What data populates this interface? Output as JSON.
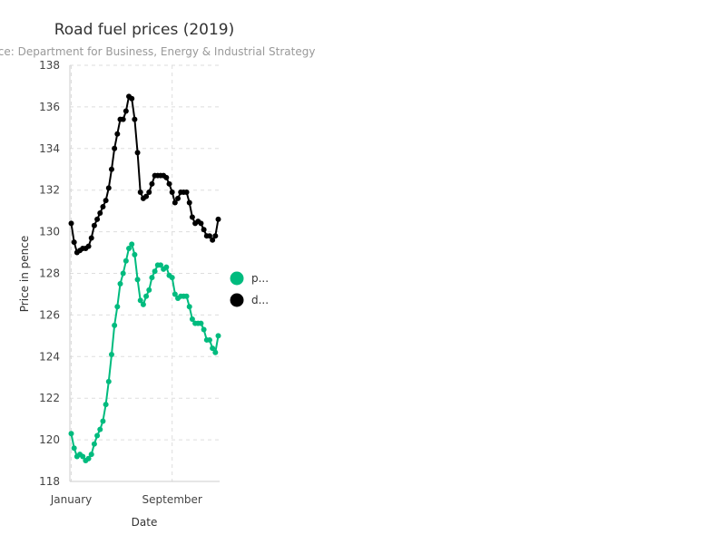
{
  "chart_data": {
    "type": "line",
    "title": "Road fuel prices (2019)",
    "subtitle": "Source: Department for Business, Energy & Industrial Strategy",
    "xlabel": "Date",
    "ylabel": "Price in pence",
    "ylim": [
      118,
      138
    ],
    "yticks": [
      118,
      120,
      122,
      124,
      126,
      128,
      130,
      132,
      134,
      136,
      138
    ],
    "xticks": [
      {
        "label": "January",
        "week": 1
      },
      {
        "label": "September",
        "week": 36
      }
    ],
    "grid": true,
    "legend_placement": "right",
    "series": [
      {
        "name": "petrol",
        "legend_label": "p...",
        "color": "#00bb7e",
        "values": [
          120.3,
          119.6,
          119.2,
          119.3,
          119.2,
          119.0,
          119.1,
          119.3,
          119.8,
          120.2,
          120.5,
          120.9,
          121.7,
          122.8,
          124.1,
          125.5,
          126.4,
          127.5,
          128.0,
          128.6,
          129.2,
          129.4,
          128.9,
          127.7,
          126.7,
          126.5,
          126.9,
          127.2,
          127.8,
          128.1,
          128.4,
          128.4,
          128.2,
          128.3,
          127.9,
          127.8,
          127.0,
          126.8,
          126.9,
          126.9,
          126.9,
          126.4,
          125.8,
          125.6,
          125.6,
          125.6,
          125.3,
          124.8,
          124.8,
          124.4,
          124.2,
          125.0
        ]
      },
      {
        "name": "diesel",
        "legend_label": "d...",
        "color": "#000000",
        "values": [
          130.4,
          129.5,
          129.0,
          129.1,
          129.2,
          129.2,
          129.3,
          129.7,
          130.3,
          130.6,
          130.9,
          131.2,
          131.5,
          132.1,
          133.0,
          134.0,
          134.7,
          135.4,
          135.4,
          135.8,
          136.5,
          136.4,
          135.4,
          133.8,
          131.9,
          131.6,
          131.7,
          131.9,
          132.3,
          132.7,
          132.7,
          132.7,
          132.7,
          132.6,
          132.3,
          131.9,
          131.4,
          131.6,
          131.9,
          131.9,
          131.9,
          131.4,
          130.7,
          130.4,
          130.5,
          130.4,
          130.1,
          129.8,
          129.8,
          129.6,
          129.8,
          130.6
        ]
      }
    ]
  }
}
